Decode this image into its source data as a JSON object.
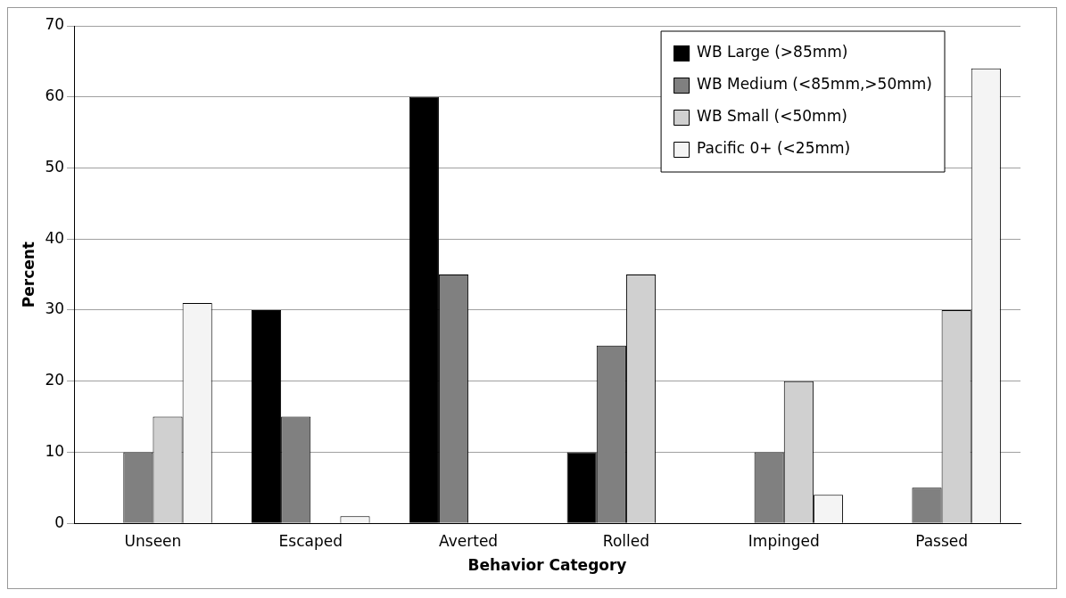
{
  "chart_data": {
    "type": "bar",
    "xlabel": "Behavior Category",
    "ylabel": "Percent",
    "categories": [
      "Unseen",
      "Escaped",
      "Averted",
      "Rolled",
      "Impinged",
      "Passed"
    ],
    "series": [
      {
        "name": "WB Large (>85mm)",
        "color": "#000000",
        "values": [
          0,
          30,
          60,
          10,
          0,
          0
        ]
      },
      {
        "name": "WB Medium (<85mm,>50mm)",
        "color": "#808080",
        "values": [
          10,
          15,
          35,
          25,
          10,
          5
        ]
      },
      {
        "name": "WB Small (<50mm)",
        "color": "#d0d0d0",
        "values": [
          15,
          0,
          0,
          35,
          20,
          30
        ]
      },
      {
        "name": "Pacific 0+ (<25mm)",
        "color": "#f4f4f4",
        "values": [
          31,
          1,
          0,
          0,
          4,
          64
        ]
      }
    ],
    "ylim": [
      0,
      70
    ],
    "yticks": [
      0,
      10,
      20,
      30,
      40,
      50,
      60,
      70
    ],
    "grid": "y",
    "legend": "top right"
  }
}
